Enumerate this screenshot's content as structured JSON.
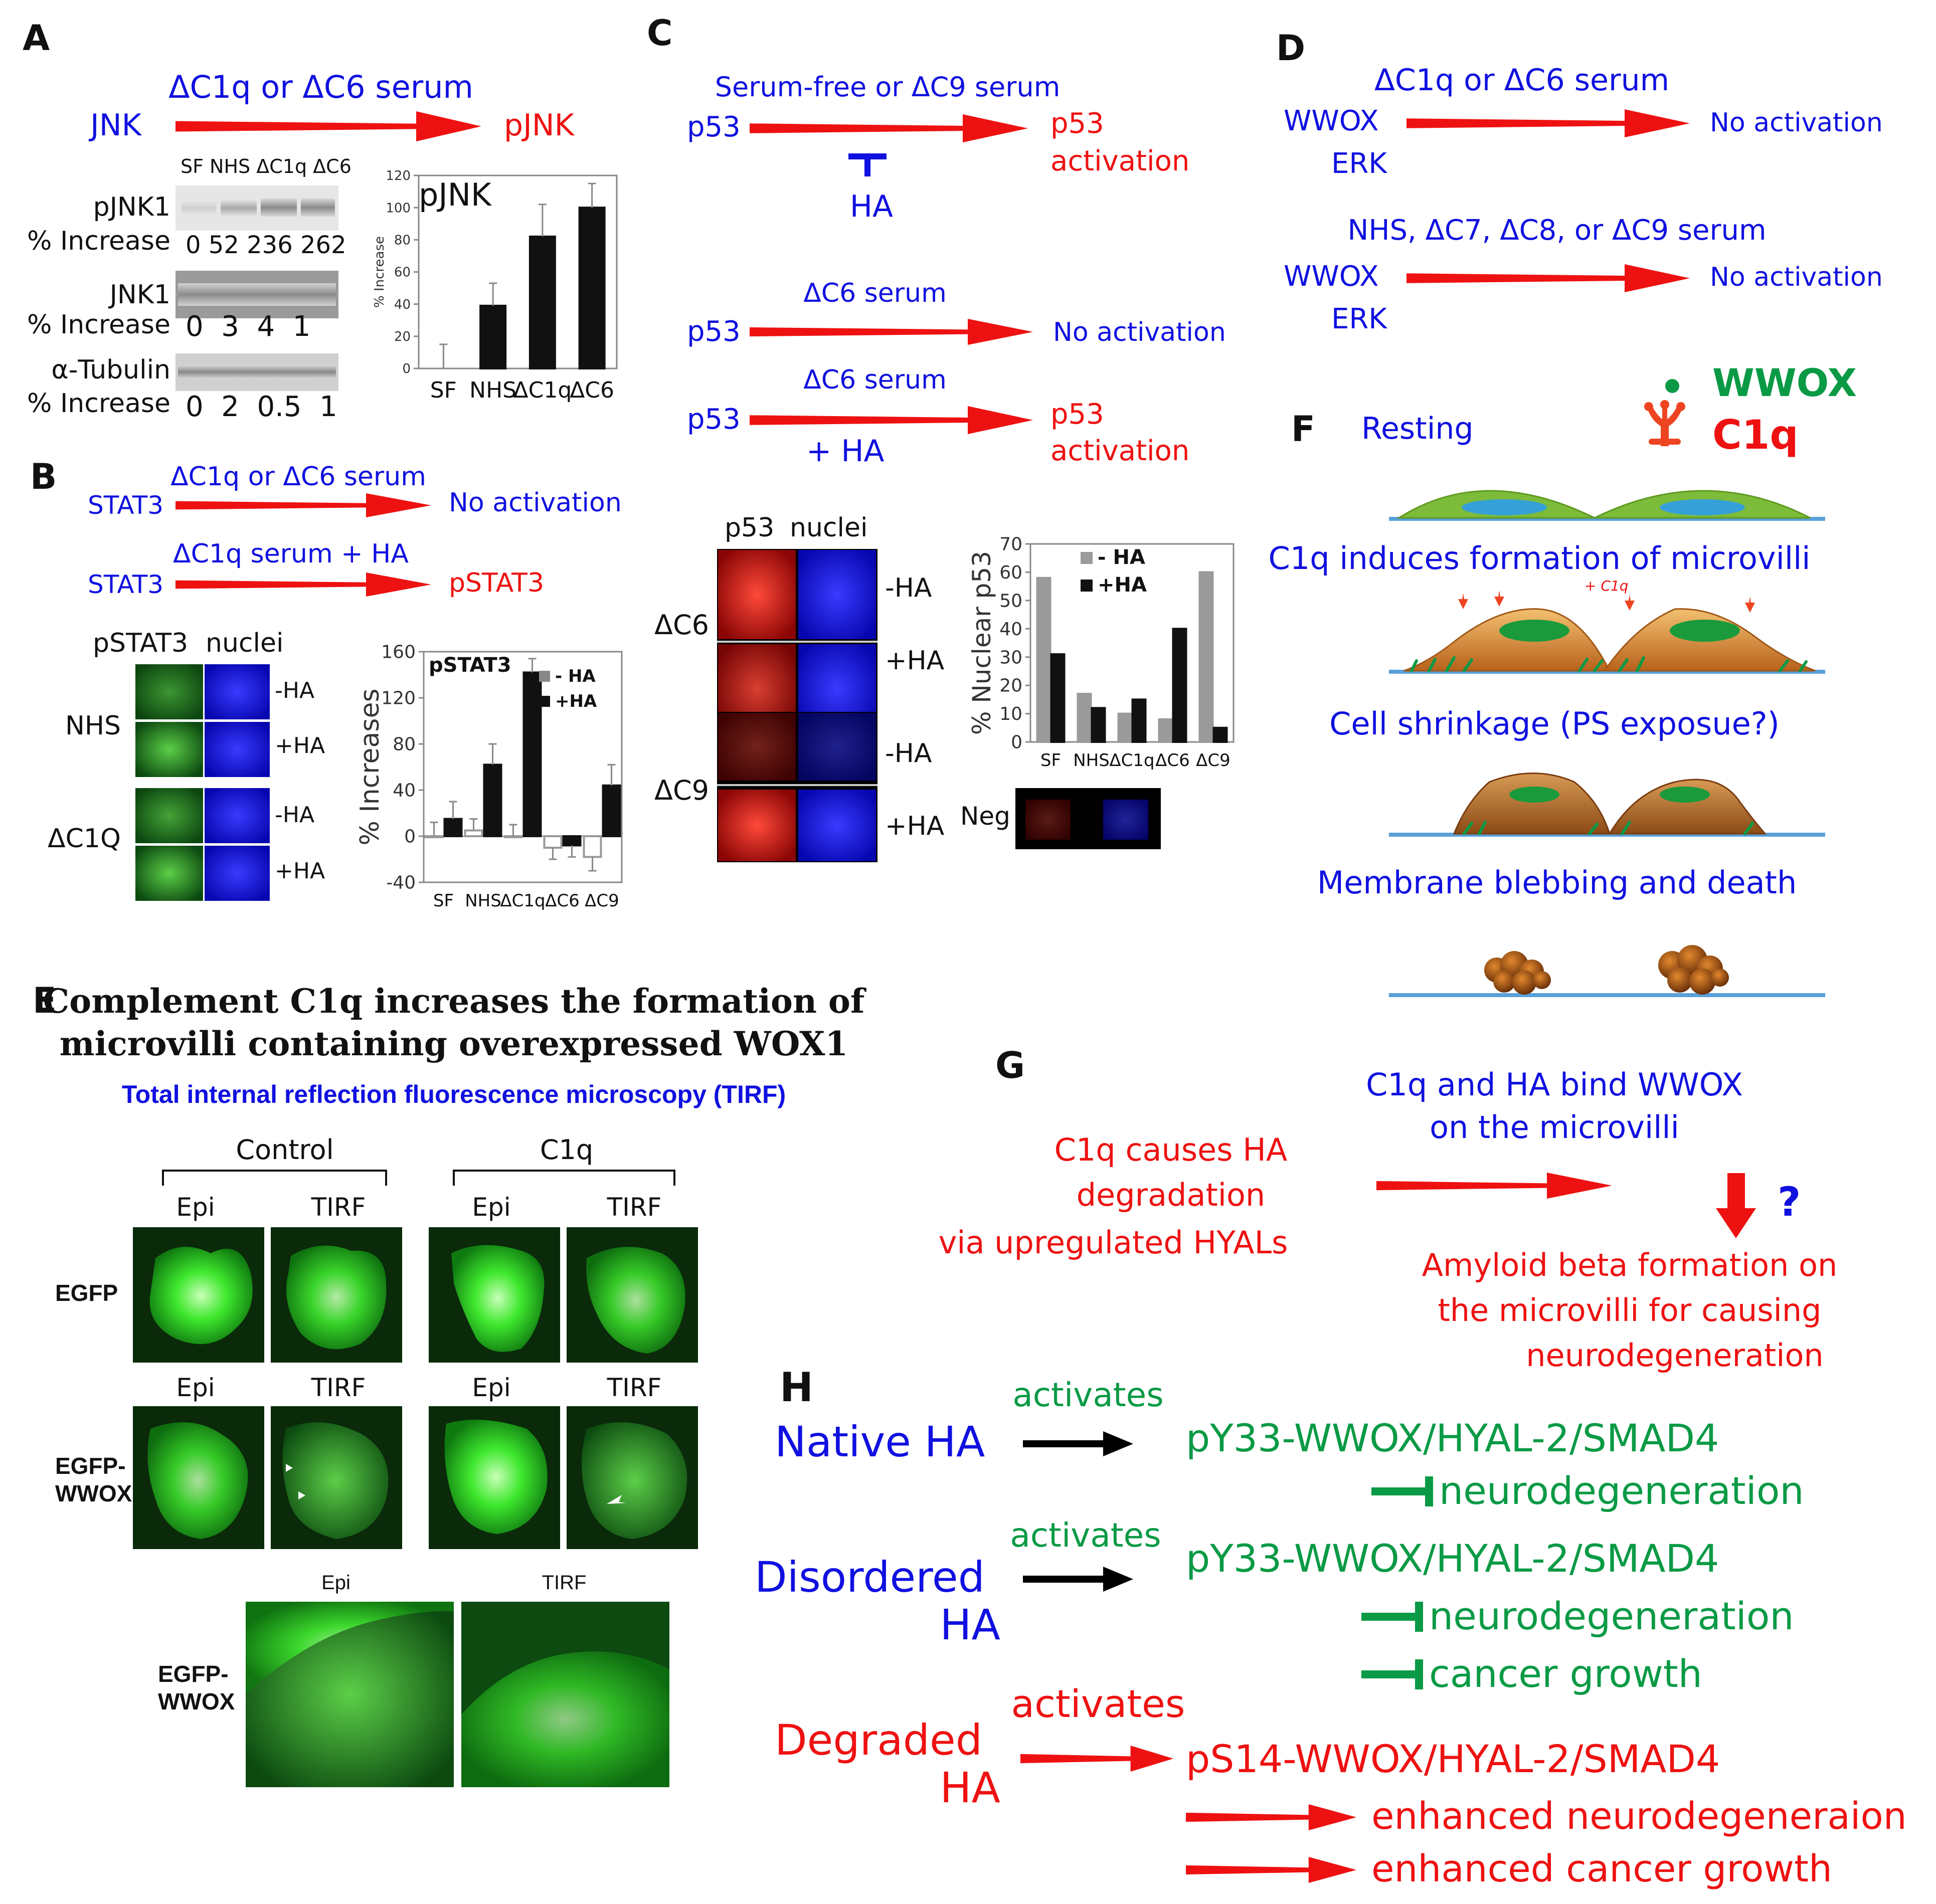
{
  "colors": {
    "blue": "#1010e0",
    "red": "#ee1111",
    "green": "#0a9a45",
    "black": "#111111",
    "arrow_red": "#ee1111",
    "fluor_green": "#33dd22",
    "fluor_red": "#dd1111",
    "fluor_blue": "#1515ee"
  },
  "panelA": {
    "letter": "A",
    "serum": "ΔC1q or ΔC6 serum",
    "from": "JNK",
    "to": "pJNK",
    "blot_cols": "SF NHS ΔC1q ΔC6",
    "rows": [
      {
        "name": "pJNK1",
        "pct_label": "% Increase",
        "values": "0 52 236 262"
      },
      {
        "name": "JNK1",
        "pct_label": "% Increase",
        "values": "0  3  4  1"
      },
      {
        "name": "α-Tubulin",
        "pct_label": "% Increase",
        "values": "0  2  0.5  1"
      }
    ]
  },
  "panelB": {
    "letter": "B",
    "line1_serum": "ΔC1q or ΔC6 serum",
    "line1_from": "STAT3",
    "line1_to": "No activation",
    "line2_serum": "ΔC1q serum + HA",
    "line2_from": "STAT3",
    "line2_to": "pSTAT3",
    "img_header_left": "pSTAT3",
    "img_header_right": "nuclei",
    "groups": [
      {
        "name": "NHS",
        "rows": [
          "-HA",
          "+HA"
        ]
      },
      {
        "name": "ΔC1Q",
        "rows": [
          "-HA",
          "+HA"
        ]
      }
    ]
  },
  "panelC": {
    "letter": "C",
    "s1_serum": "Serum-free or ΔC9 serum",
    "s1_from": "p53",
    "s1_to1": "p53",
    "s1_to2": "activation",
    "s1_inhibitor": "HA",
    "s2_serum": "ΔC6 serum",
    "s2_from": "p53",
    "s2_to": "No activation",
    "s3_serum": "ΔC6 serum",
    "s3_from": "p53",
    "s3_plus": "+ HA",
    "s3_to1": "p53",
    "s3_to2": "activation",
    "img_header_left": "p53",
    "img_header_right": "nuclei",
    "groups": [
      {
        "name": "ΔC6",
        "rows": [
          "-HA",
          "+HA"
        ]
      },
      {
        "name": "ΔC9",
        "rows": [
          "-HA",
          "+HA"
        ]
      }
    ],
    "neg_label": "Neg"
  },
  "panelD": {
    "letter": "D",
    "s1_serum": "ΔC1q or ΔC6 serum",
    "s1_from1": "WWOX",
    "s1_from2": "ERK",
    "s1_to": "No activation",
    "s2_serum": "NHS, ΔC7, ΔC8, or ΔC9 serum",
    "s2_from1": "WWOX",
    "s2_from2": "ERK",
    "s2_to": "No activation"
  },
  "panelE": {
    "letter": "E",
    "title1": "Complement C1q increases the formation of",
    "title2": "microvilli containing overexpressed WOX1",
    "subtitle": "Total internal reflection fluorescence microscopy (TIRF)",
    "group_control": "Control",
    "group_c1q": "C1q",
    "col_epi": "Epi",
    "col_tirf": "TIRF",
    "row1": "EGFP",
    "row2_l1": "EGFP-",
    "row2_l2": "WWOX",
    "row3_l1": "EGFP-",
    "row3_l2": "WWOX"
  },
  "panelF": {
    "letter": "F",
    "resting": "Resting",
    "legend_wwox": "WWOX",
    "legend_c1q": "C1q",
    "step1": "C1q induces formation of microvilli",
    "c1q_small": "+ C1q",
    "step2": "Cell shrinkage (PS exposue?)",
    "step3": "Membrane blebbing and death"
  },
  "panelG": {
    "letter": "G",
    "left1": "C1q causes HA",
    "left2": "degradation",
    "left3": "via upregulated HYALs",
    "right1": "C1q and HA bind WWOX",
    "right2": "on the microvilli",
    "question": "?",
    "bottom1": "Amyloid beta formation on",
    "bottom2": "the microvilli for causing",
    "bottom3": "neurodegeneration"
  },
  "panelH": {
    "letter": "H",
    "r1_ha": "Native HA",
    "r1_act": "activates",
    "r1_target": "pY33-WWOX/HYAL-2/SMAD4",
    "r1_out1": "neurodegeneration",
    "r2_ha1": "Disordered",
    "r2_ha2": "HA",
    "r2_act": "activates",
    "r2_target": "pY33-WWOX/HYAL-2/SMAD4",
    "r2_out1": "neurodegeneration",
    "r2_out2": "cancer growth",
    "r3_ha1": "Degraded",
    "r3_ha2": "HA",
    "r3_act": "activates",
    "r3_target": "pS14-WWOX/HYAL-2/SMAD4",
    "r3_out1": "enhanced neurodegeneraion",
    "r3_out2": "enhanced cancer growth"
  },
  "chart_pJNK": {
    "type": "bar",
    "title": "pJNK",
    "ylabel": "% Increase",
    "categories": [
      "SF",
      "NHS",
      "ΔC1q",
      "ΔC6"
    ],
    "values": [
      0,
      39,
      82,
      100
    ],
    "errors": [
      15,
      14,
      20,
      15
    ],
    "ylim": [
      0,
      120
    ],
    "yticks": [
      0,
      20,
      40,
      60,
      80,
      100,
      120
    ]
  },
  "chart_pSTAT3": {
    "type": "bar",
    "title": "pSTAT3",
    "ylabel": "% Increases",
    "categories": [
      "SF",
      "NHS",
      "ΔC1q",
      "ΔC6",
      "ΔC9"
    ],
    "series": [
      {
        "name": "- HA",
        "values": [
          0,
          5,
          0,
          -10,
          -18
        ],
        "errors": [
          12,
          10,
          10,
          10,
          12
        ]
      },
      {
        "name": "+HA",
        "values": [
          15,
          62,
          142,
          -8,
          44
        ],
        "errors": [
          15,
          18,
          12,
          10,
          18
        ]
      }
    ],
    "ylim": [
      -40,
      160
    ],
    "yticks": [
      -40,
      0,
      40,
      80,
      120,
      160
    ]
  },
  "chart_p53": {
    "type": "bar",
    "ylabel": "% Nuclear p53",
    "categories": [
      "SF",
      "NHS",
      "ΔC1q",
      "ΔC6",
      "ΔC9"
    ],
    "series": [
      {
        "name": "- HA",
        "values": [
          58,
          17,
          10,
          8,
          60
        ]
      },
      {
        "name": "+HA",
        "values": [
          31,
          12,
          15,
          40,
          5
        ]
      }
    ],
    "ylim": [
      0,
      70
    ],
    "yticks": [
      0,
      10,
      20,
      30,
      40,
      50,
      60,
      70
    ]
  }
}
